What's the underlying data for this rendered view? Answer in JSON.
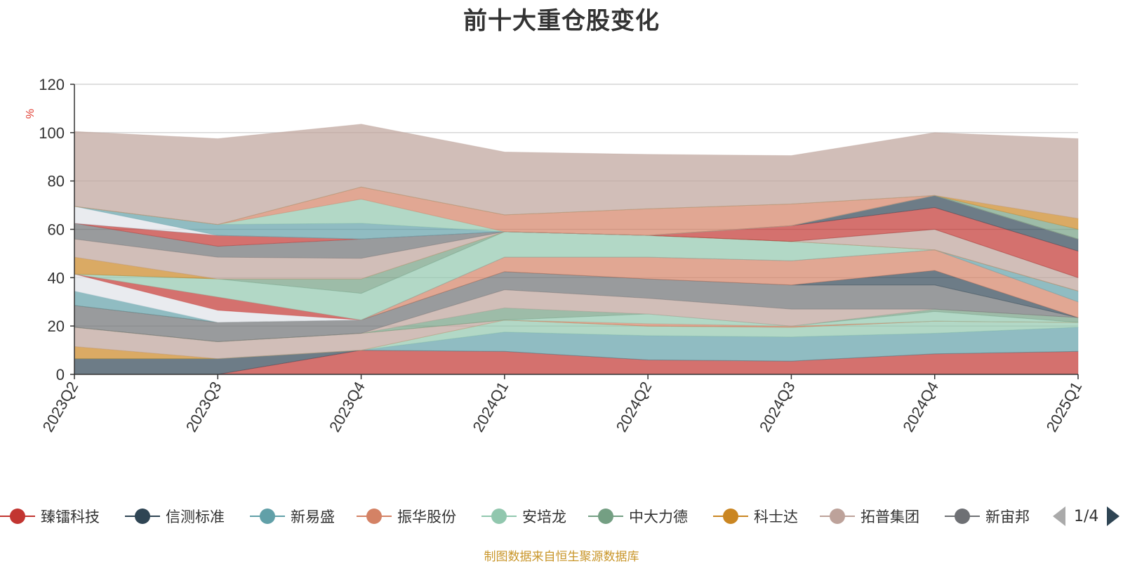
{
  "title": "前十大重仓股变化",
  "source_note": "制图数据来自恒生聚源数据库",
  "legend": {
    "items": [
      {
        "label": "臻镭科技",
        "color": "#c23531"
      },
      {
        "label": "信测标准",
        "color": "#2f4554"
      },
      {
        "label": "新易盛",
        "color": "#61a0a8"
      },
      {
        "label": "振华股份",
        "color": "#d48265"
      },
      {
        "label": "安培龙",
        "color": "#91c7ae"
      },
      {
        "label": "中大力德",
        "color": "#749f83"
      },
      {
        "label": "科士达",
        "color": "#ca8622"
      },
      {
        "label": "拓普集团",
        "color": "#bda29a"
      },
      {
        "label": "新宙邦",
        "color": "#6e7074"
      }
    ],
    "pager": "1/4"
  },
  "chart_data": {
    "type": "area",
    "stacked": true,
    "title": "前十大重仓股变化",
    "ylabel": "%",
    "ylim": [
      0,
      120
    ],
    "yticks": [
      0,
      20,
      40,
      60,
      80,
      100,
      120
    ],
    "categories": [
      "2023Q2",
      "2023Q3",
      "2023Q4",
      "2024Q1",
      "2024Q2",
      "2024Q3",
      "2024Q4",
      "2025Q1"
    ],
    "grid": true,
    "legend_position": "bottom",
    "bands": [
      {
        "color": "#c23531",
        "values": [
          0,
          0,
          10,
          9.5,
          6,
          5.5,
          8.5,
          9.5
        ]
      },
      {
        "color": "#2f4554",
        "values": [
          6.5,
          6.5,
          0,
          0,
          0,
          0,
          0,
          0
        ]
      },
      {
        "color": "#61a0a8",
        "values": [
          0,
          0,
          0,
          8,
          10,
          10,
          8.5,
          10
        ]
      },
      {
        "color": "#91c7ae",
        "values": [
          0,
          0,
          0,
          5,
          4,
          4,
          5,
          2
        ]
      },
      {
        "color": "#ca8622",
        "values": [
          5,
          0,
          0,
          0,
          0,
          0,
          0,
          0
        ]
      },
      {
        "color": "#bda29a",
        "values": [
          8,
          7,
          7,
          0,
          0,
          0,
          0,
          0
        ]
      },
      {
        "color": "#d48265",
        "values": [
          0,
          0,
          0,
          0,
          1,
          0.5,
          0,
          0
        ]
      },
      {
        "color": "#91c7ae",
        "values": [
          0,
          0,
          0,
          0,
          4,
          0,
          4,
          0
        ]
      },
      {
        "color": "#749f83",
        "values": [
          0,
          0,
          0,
          5,
          0,
          0,
          1,
          2
        ]
      },
      {
        "color": "#bda29a",
        "values": [
          0,
          0,
          0,
          7.5,
          6.5,
          7,
          0,
          0
        ]
      },
      {
        "color": "#6e7074",
        "values": [
          9,
          8,
          5.5,
          7.5,
          8,
          10,
          10,
          0
        ]
      },
      {
        "color": "#2f4554",
        "values": [
          0,
          0,
          0,
          0,
          0,
          0,
          6,
          0
        ]
      },
      {
        "color": "#d48265",
        "values": [
          0,
          0,
          0,
          6,
          9,
          10,
          8.5,
          6.5
        ]
      },
      {
        "color": "#61a0a8",
        "values": [
          6,
          0,
          0,
          0,
          0,
          0,
          0,
          4.5
        ]
      },
      {
        "color": "#dfe3e8",
        "values": [
          7,
          5,
          0,
          0,
          0,
          0,
          0,
          0
        ]
      },
      {
        "color": "#c23531",
        "values": [
          0,
          5.5,
          0,
          0,
          0,
          0,
          0,
          0
        ]
      },
      {
        "color": "#91c7ae",
        "values": [
          0,
          7.5,
          11,
          10.5,
          9,
          8,
          0,
          0
        ]
      },
      {
        "color": "#749f83",
        "values": [
          0,
          0,
          6,
          0,
          0,
          0,
          0,
          0
        ]
      },
      {
        "color": "#ca8622",
        "values": [
          7,
          0,
          0,
          0,
          0,
          0,
          0,
          0
        ]
      },
      {
        "color": "#bda29a",
        "values": [
          7.5,
          9,
          8.5,
          0,
          0,
          0,
          8.5,
          5.5
        ]
      },
      {
        "color": "#6e7074",
        "values": [
          6.5,
          4.5,
          8,
          0,
          0,
          0,
          0,
          0
        ]
      },
      {
        "color": "#c23531",
        "values": [
          0,
          4.5,
          0,
          0,
          0,
          6.5,
          9,
          11
        ]
      },
      {
        "color": "#2f4554",
        "values": [
          0,
          0,
          0,
          0,
          0,
          0,
          5,
          5
        ]
      },
      {
        "color": "#dfe3e8",
        "values": [
          7,
          0,
          0,
          0,
          0,
          0,
          0,
          0
        ]
      },
      {
        "color": "#61a0a8",
        "values": [
          0,
          4.5,
          6.5,
          0,
          0,
          0,
          0,
          0
        ]
      },
      {
        "color": "#91c7ae",
        "values": [
          0,
          0,
          10,
          0,
          0,
          0,
          0,
          0
        ]
      },
      {
        "color": "#d48265",
        "values": [
          0,
          0,
          5,
          7,
          11,
          9,
          0,
          0
        ]
      },
      {
        "color": "#749f83",
        "values": [
          0,
          0,
          0,
          0,
          0,
          0,
          0,
          4
        ]
      },
      {
        "color": "#ca8622",
        "values": [
          0,
          0,
          0,
          0,
          0,
          0,
          0,
          4.5
        ]
      },
      {
        "color": "#bda29a",
        "values": [
          31,
          35.5,
          26,
          26,
          22.5,
          20,
          26,
          33
        ]
      }
    ]
  }
}
